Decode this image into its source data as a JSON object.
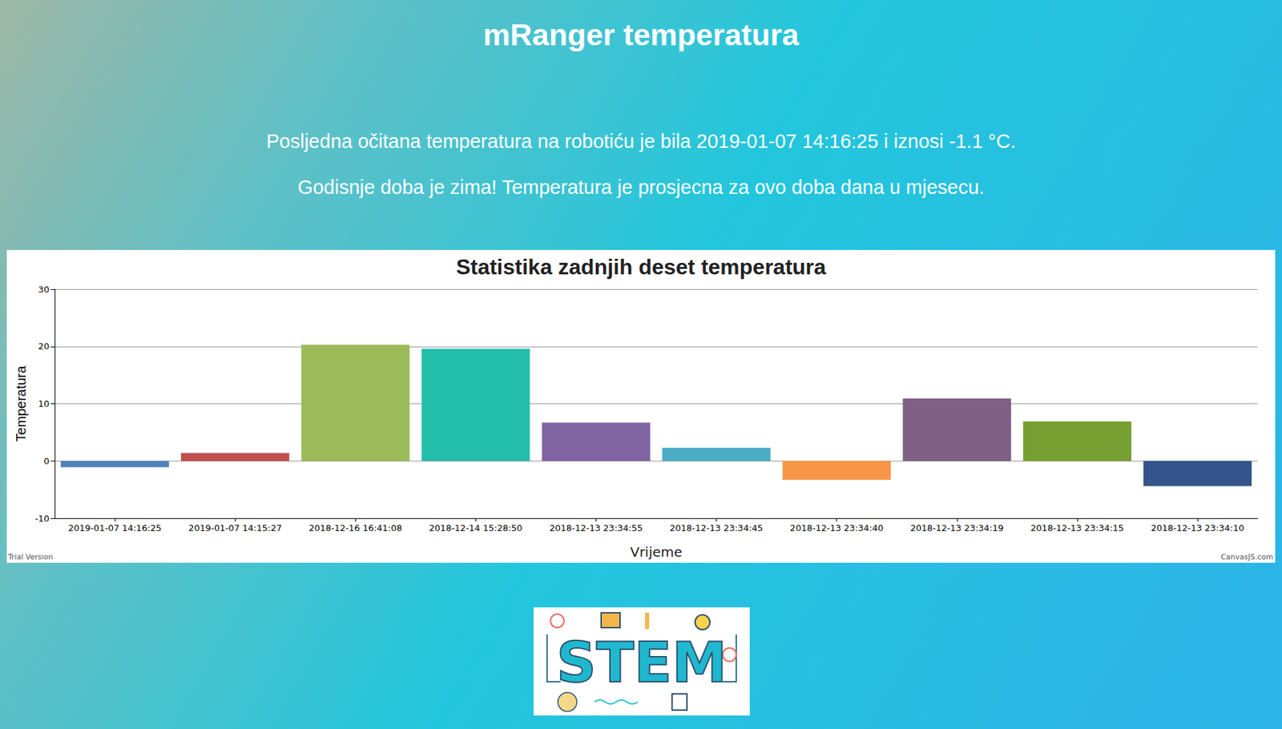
{
  "page": {
    "heading": "mRanger temperatura",
    "paragraphs": [
      "Posljedna očitana temperatura na robotiću je bila 2019-01-07 14:16:25 i iznosi -1.1 °C.",
      "Godisnje doba je zima! Temperatura je prosjecna za ovo doba dana u mjesecu."
    ],
    "logo": "STEM"
  },
  "chart_data": {
    "type": "bar",
    "title": "Statistika zadnjih deset temperatura",
    "x_label": "Vrijeme",
    "y_label": "Temperatura",
    "categories": [
      "2019-01-07 14:16:25",
      "2019-01-07 14:15:27",
      "2018-12-16 16:41:08",
      "2018-12-14 15:28:50",
      "2018-12-13 23:34:55",
      "2018-12-13 23:34:45",
      "2018-12-13 23:34:40",
      "2018-12-13 23:34:19",
      "2018-12-13 23:34:15",
      "2018-12-13 23:34:10"
    ],
    "values": [
      -1.1,
      1.4,
      20.3,
      19.6,
      6.7,
      2.3,
      -3.3,
      10.9,
      6.9,
      -4.4
    ],
    "colors": [
      "#4f81bc",
      "#c0504e",
      "#9bbb58",
      "#23bfaa",
      "#8064a1",
      "#4aacc5",
      "#f79647",
      "#7f6084",
      "#77a033",
      "#33558b"
    ],
    "ylim": [
      -10,
      30
    ],
    "yticks": [
      -10,
      0,
      10,
      20,
      30
    ],
    "grid": true,
    "annotations": [
      "Trial Version",
      "CanvasJS.com"
    ]
  }
}
